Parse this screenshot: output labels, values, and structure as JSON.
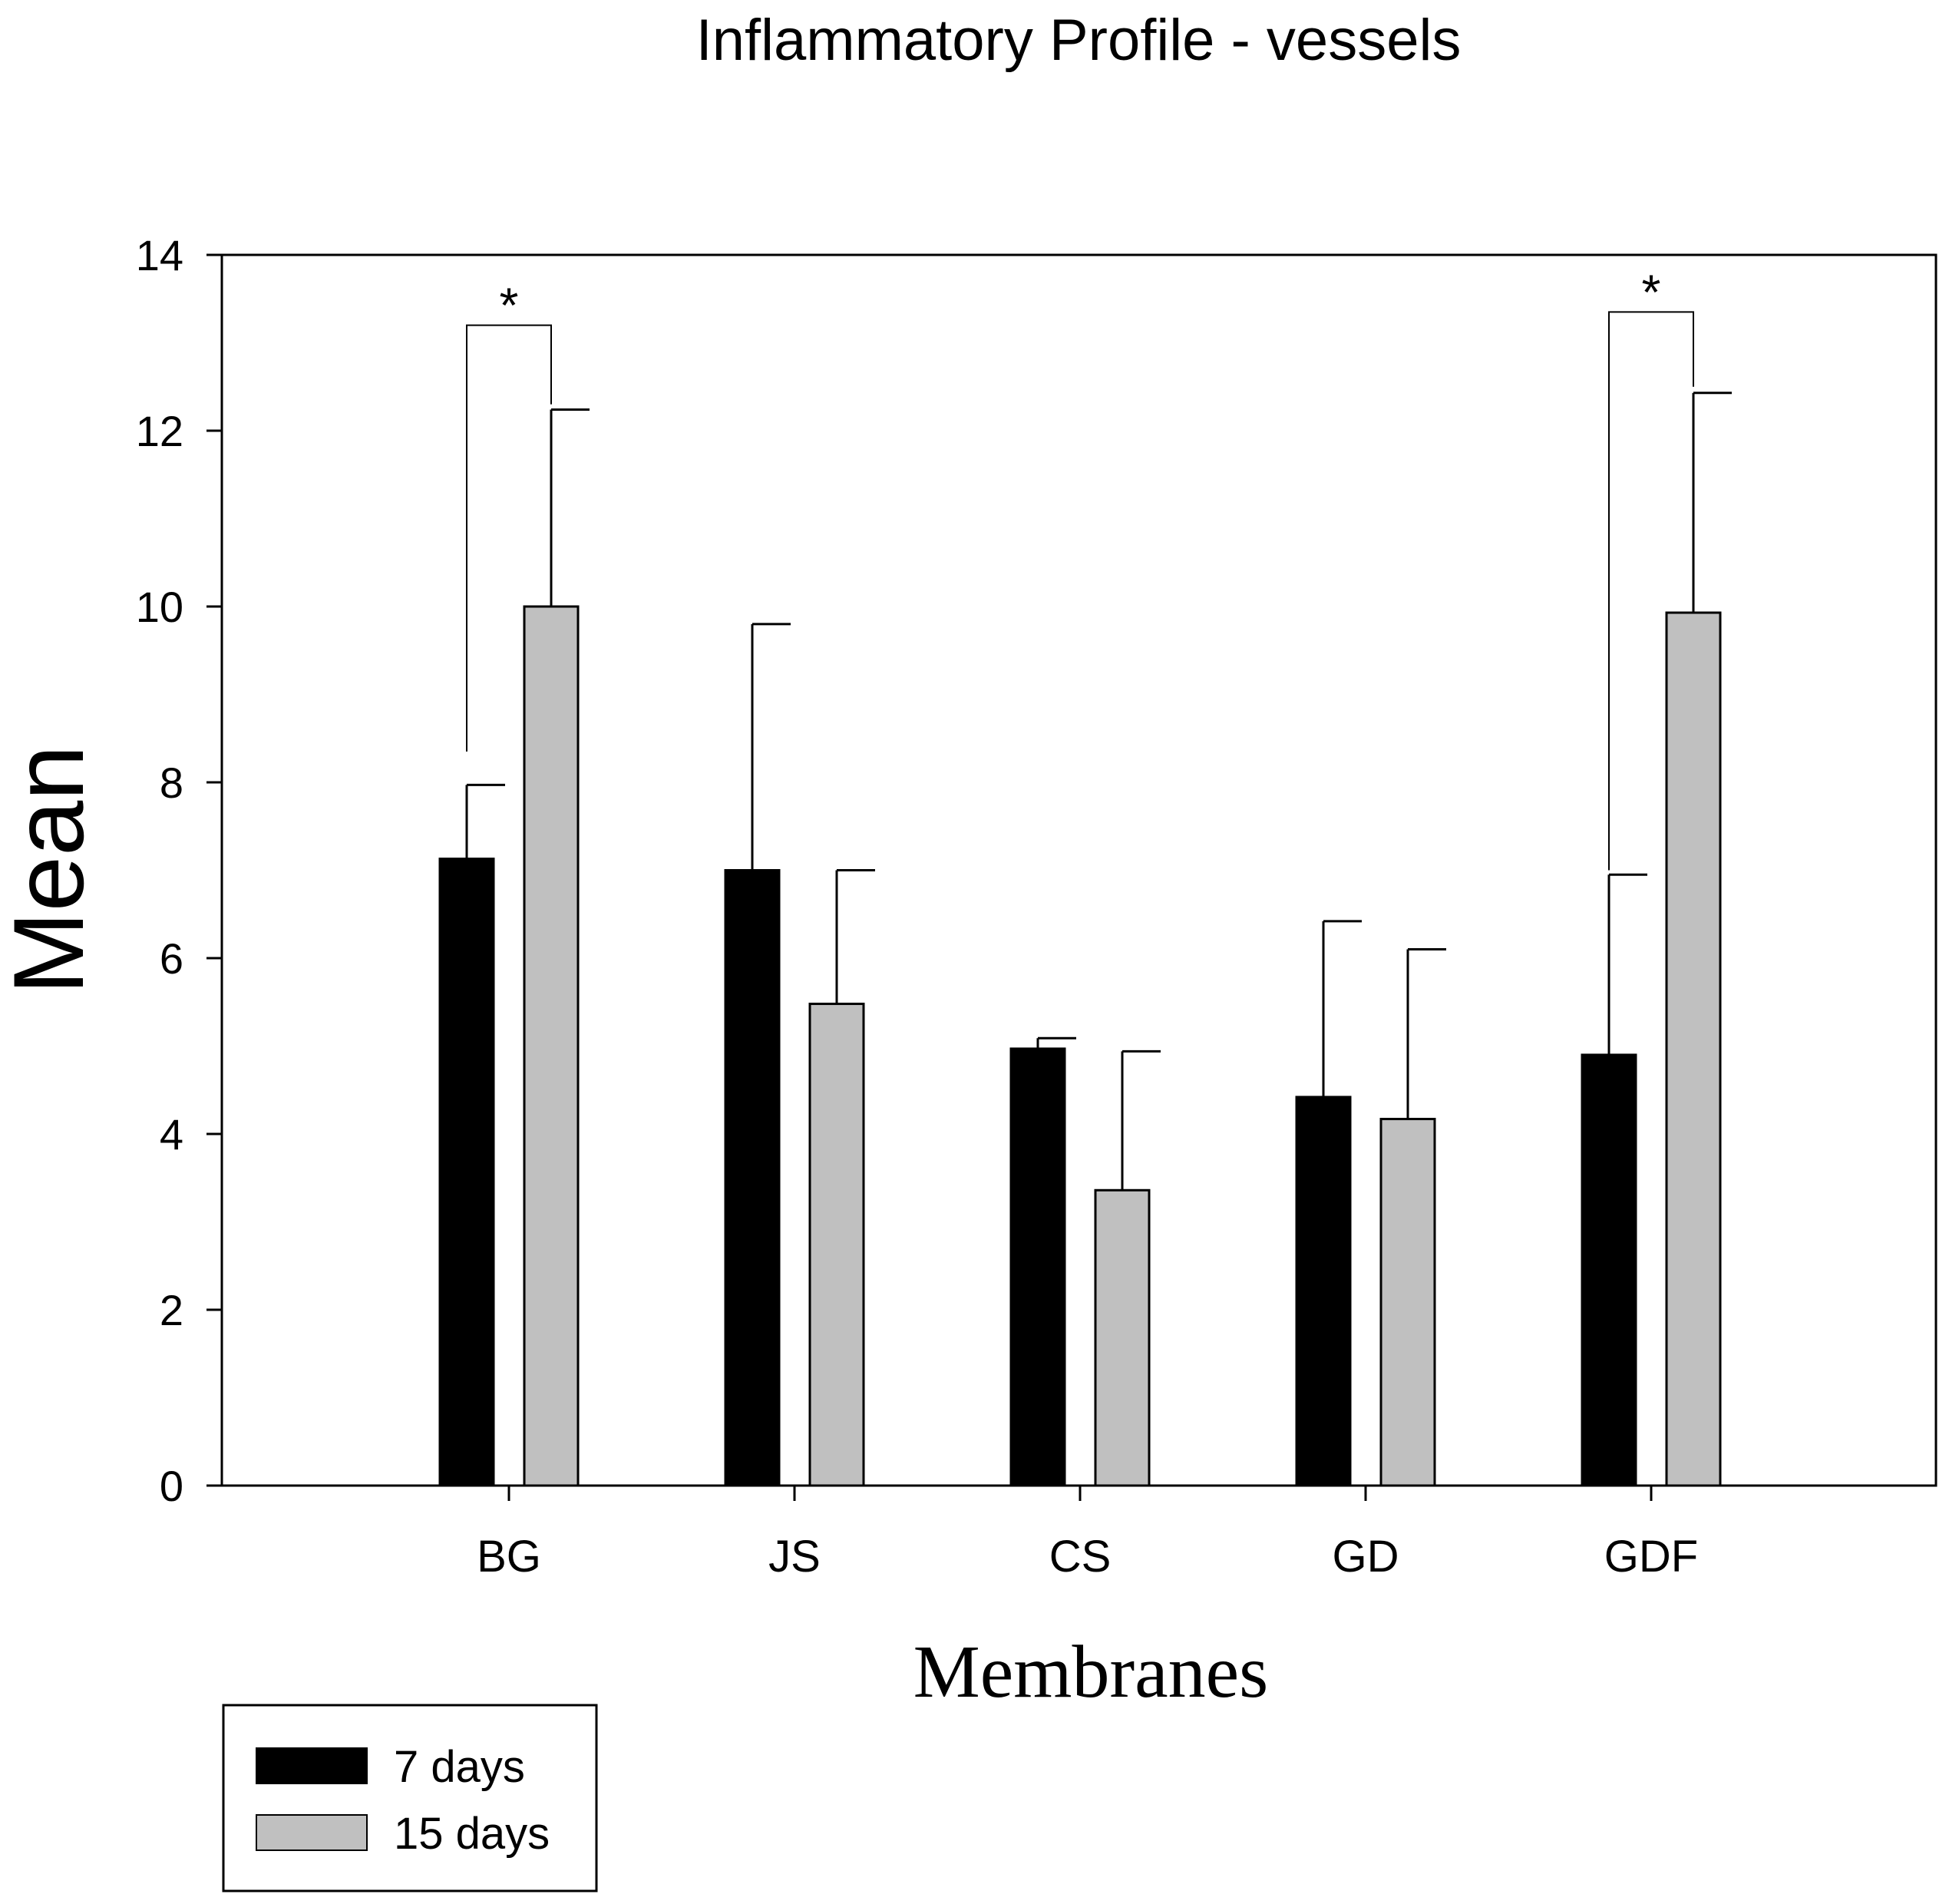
{
  "chart_data": {
    "type": "bar",
    "title": "Inflammatory Profile - vessels",
    "xlabel": "Membranes",
    "ylabel": "Mean",
    "categories": [
      "BG",
      "JS",
      "CS",
      "GD",
      "GDF"
    ],
    "ylim": [
      0,
      14
    ],
    "yticks": [
      0,
      2,
      4,
      6,
      8,
      10,
      12,
      14
    ],
    "series": [
      {
        "name": "7 days",
        "color": "#000000",
        "values": [
          7.13,
          7.0,
          4.97,
          4.42,
          4.9
        ],
        "errors": [
          0.84,
          2.8,
          0.12,
          2.0,
          2.05
        ]
      },
      {
        "name": "15 days",
        "color": "#c0c0c0",
        "values": [
          10.0,
          5.48,
          3.36,
          4.17,
          9.93
        ],
        "errors": [
          2.24,
          1.52,
          1.58,
          1.93,
          2.5
        ]
      }
    ],
    "significance": [
      {
        "category": "BG",
        "label": "*",
        "bracket_top": 13.2,
        "left_bottom": 8.35,
        "right_bottom": 12.3
      },
      {
        "category": "GDF",
        "label": "*",
        "bracket_top": 13.35,
        "left_bottom": 7.0,
        "right_bottom": 12.5
      }
    ],
    "legend": {
      "position": "bottom-left",
      "entries": [
        "7 days",
        "15 days"
      ]
    },
    "grid": false
  }
}
